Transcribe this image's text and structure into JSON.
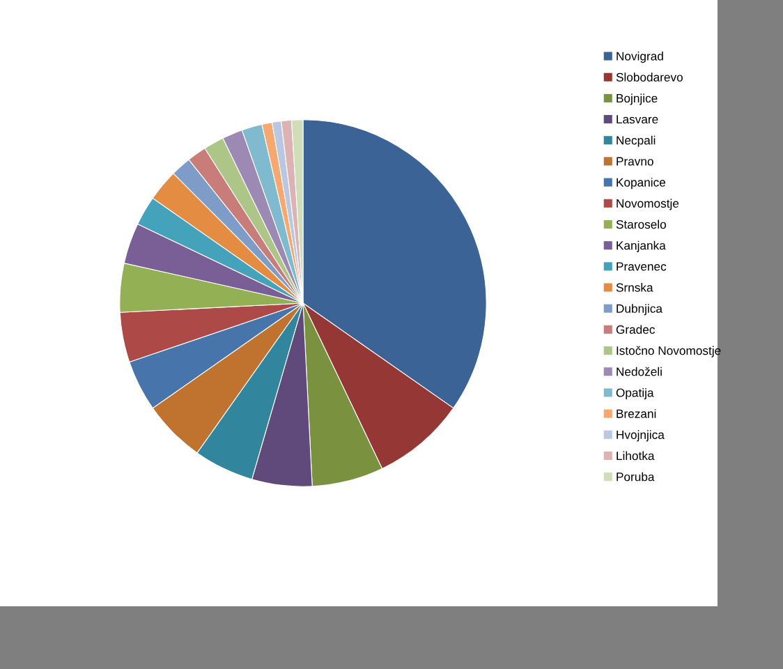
{
  "chart_data": {
    "type": "pie",
    "categories": [
      "Novigrad",
      "Slobodarevo",
      "Bojnjice",
      "Lasvare",
      "Necpali",
      "Pravno",
      "Kopanice",
      "Novomostje",
      "Staroselo",
      "Kanjanka",
      "Pravenec",
      "Srnska",
      "Dubnjica",
      "Gradec",
      "Istočno Novomostje",
      "Nedoželi",
      "Opatija",
      "Brezani",
      "Hvojnjica",
      "Lihotka",
      "Poruba"
    ],
    "values": [
      34.7,
      8.2,
      6.3,
      5.3,
      5.3,
      5.5,
      4.5,
      4.4,
      4.3,
      3.6,
      2.6,
      2.8,
      1.8,
      1.7,
      1.8,
      1.8,
      1.8,
      0.9,
      0.8,
      0.9,
      1.0
    ],
    "colors": [
      "#3b6395",
      "#953735",
      "#7a9140",
      "#604a7b",
      "#31859c",
      "#c0722f",
      "#4674ab",
      "#ad4a47",
      "#94b054",
      "#7a5f96",
      "#44a3bb",
      "#e48c41",
      "#7f9bc7",
      "#c97d7b",
      "#adc687",
      "#9c8ab4",
      "#7fbace",
      "#f7a86f",
      "#b9c7e0",
      "#dcb3b2",
      "#cfddb8"
    ],
    "legend": "right"
  }
}
